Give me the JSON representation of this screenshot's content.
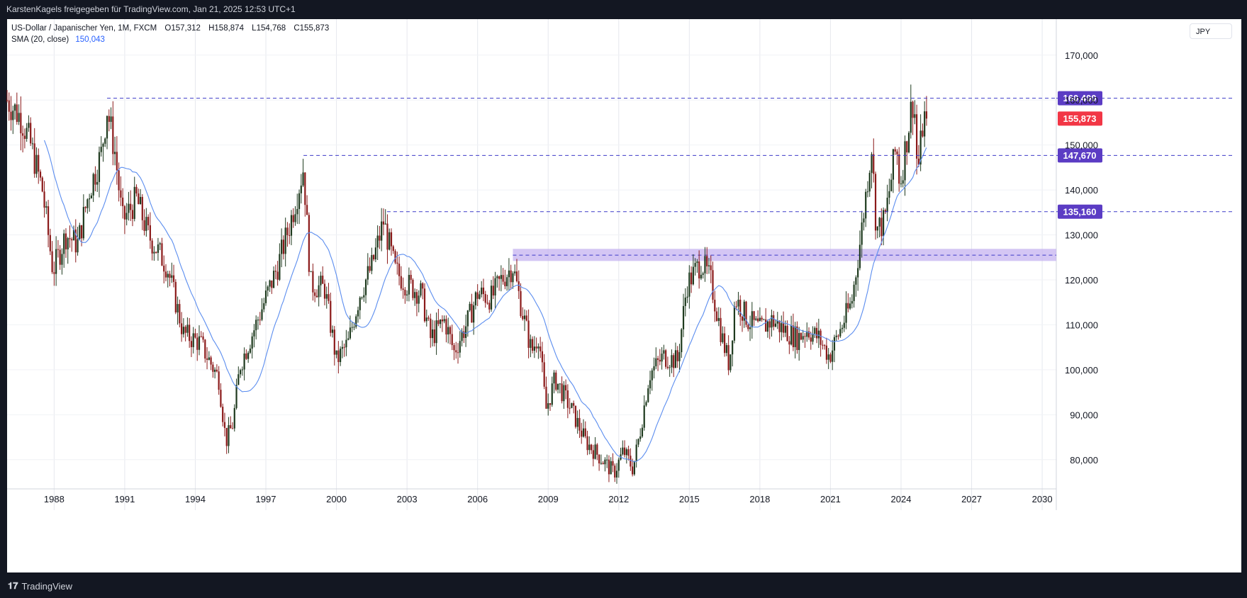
{
  "header": {
    "text": "KarstenKagels freigegeben für TradingView.com, Jan 21, 2025 12:53 UTC+1"
  },
  "legend": {
    "symbol": "US-Dollar / Japanischer Yen, 1M, FXCM",
    "open": "O157,312",
    "high": "H158,874",
    "low": "L154,768",
    "close": "C155,873",
    "sma_label": "SMA (20, close)",
    "sma_value": "150,043"
  },
  "currency_button": "JPY",
  "footer": {
    "logo_text": "TradingView"
  },
  "colors": {
    "up": "#1e3a1e",
    "down": "#8b1a1a",
    "sma": "#5b8def",
    "level_line": "#3d3ac8",
    "level_label_bg": "#5b3cc4",
    "price_label_bg": "#f23645",
    "zone": "#c5b3f0"
  },
  "chart_data": {
    "type": "candlestick",
    "interval": "1M",
    "ylim": [
      73500,
      178000
    ],
    "xlim": [
      1986.0,
      2030.6
    ],
    "y_ticks": [
      "80,000",
      "90,000",
      "100,000",
      "110,000",
      "120,000",
      "130,000",
      "140,000",
      "150,000",
      "160,000",
      "170,000"
    ],
    "y_tick_values": [
      80000,
      90000,
      100000,
      110000,
      120000,
      130000,
      140000,
      150000,
      160000,
      170000
    ],
    "x_ticks": [
      "1988",
      "1991",
      "1994",
      "1997",
      "2000",
      "2003",
      "2006",
      "2009",
      "2012",
      "2015",
      "2018",
      "2021",
      "2024",
      "2027",
      "2030"
    ],
    "x_tick_values": [
      1988,
      1991,
      1994,
      1997,
      2000,
      2003,
      2006,
      2009,
      2012,
      2015,
      2018,
      2021,
      2024,
      2027,
      2030
    ],
    "price_path": [
      [
        1986.0,
        160000
      ],
      [
        1986.6,
        156000
      ],
      [
        1987.0,
        150000
      ],
      [
        1987.5,
        140000
      ],
      [
        1987.95,
        122000
      ],
      [
        1988.5,
        130000
      ],
      [
        1989.0,
        128000
      ],
      [
        1989.5,
        140000
      ],
      [
        1990.0,
        148000
      ],
      [
        1990.25,
        158000
      ],
      [
        1990.6,
        148000
      ],
      [
        1990.9,
        133000
      ],
      [
        1991.5,
        138000
      ],
      [
        1992.0,
        130000
      ],
      [
        1992.8,
        123000
      ],
      [
        1993.5,
        108000
      ],
      [
        1994.2,
        106000
      ],
      [
        1994.8,
        100000
      ],
      [
        1995.0,
        98000
      ],
      [
        1995.3,
        84000
      ],
      [
        1995.6,
        88000
      ],
      [
        1995.9,
        101000
      ],
      [
        1996.5,
        109000
      ],
      [
        1997.0,
        116000
      ],
      [
        1997.5,
        123000
      ],
      [
        1998.0,
        132000
      ],
      [
        1998.6,
        145000
      ],
      [
        1998.9,
        119000
      ],
      [
        1999.5,
        118000
      ],
      [
        2000.0,
        102000
      ],
      [
        2000.5,
        106000
      ],
      [
        2001.0,
        117000
      ],
      [
        2001.5,
        123000
      ],
      [
        2002.0,
        133000
      ],
      [
        2002.5,
        122000
      ],
      [
        2003.0,
        119000
      ],
      [
        2003.6,
        117000
      ],
      [
        2004.0,
        107000
      ],
      [
        2004.6,
        111000
      ],
      [
        2005.0,
        104000
      ],
      [
        2005.6,
        111000
      ],
      [
        2006.0,
        117000
      ],
      [
        2006.6,
        116000
      ],
      [
        2007.0,
        120000
      ],
      [
        2007.5,
        123000
      ],
      [
        2007.9,
        113000
      ],
      [
        2008.3,
        104000
      ],
      [
        2008.6,
        108000
      ],
      [
        2008.9,
        91000
      ],
      [
        2009.3,
        98000
      ],
      [
        2010.0,
        91000
      ],
      [
        2010.6,
        84000
      ],
      [
        2011.3,
        80000
      ],
      [
        2011.8,
        77000
      ],
      [
        2012.2,
        82000
      ],
      [
        2012.6,
        78000
      ],
      [
        2012.9,
        86000
      ],
      [
        2013.3,
        99000
      ],
      [
        2013.9,
        103000
      ],
      [
        2014.5,
        102000
      ],
      [
        2014.9,
        119000
      ],
      [
        2015.5,
        124000
      ],
      [
        2015.9,
        120000
      ],
      [
        2016.4,
        107000
      ],
      [
        2016.7,
        101000
      ],
      [
        2016.95,
        116000
      ],
      [
        2017.5,
        111000
      ],
      [
        2018.0,
        109000
      ],
      [
        2018.5,
        111000
      ],
      [
        2019.0,
        109000
      ],
      [
        2019.6,
        107000
      ],
      [
        2020.0,
        109000
      ],
      [
        2020.5,
        107000
      ],
      [
        2020.95,
        103000
      ],
      [
        2021.5,
        110000
      ],
      [
        2021.9,
        115000
      ],
      [
        2022.3,
        130000
      ],
      [
        2022.75,
        150000
      ],
      [
        2022.95,
        131000
      ],
      [
        2023.3,
        133000
      ],
      [
        2023.8,
        150000
      ],
      [
        2023.95,
        141000
      ],
      [
        2024.4,
        157000
      ],
      [
        2024.55,
        161000
      ],
      [
        2024.7,
        143000
      ],
      [
        2024.95,
        156000
      ],
      [
        2025.05,
        155873
      ]
    ],
    "sma_period": 20,
    "levels": [
      {
        "value": 160400,
        "label": "160,400",
        "from": 1990.25
      },
      {
        "value": 147670,
        "label": "147,670",
        "from": 1998.6
      },
      {
        "value": 135160,
        "label": "135,160",
        "from": 2002.15
      }
    ],
    "zone": {
      "low": 124200,
      "high": 126900,
      "from": 2007.5,
      "mid": 125500
    },
    "last_price": {
      "value": 155873,
      "label": "155,873"
    }
  }
}
